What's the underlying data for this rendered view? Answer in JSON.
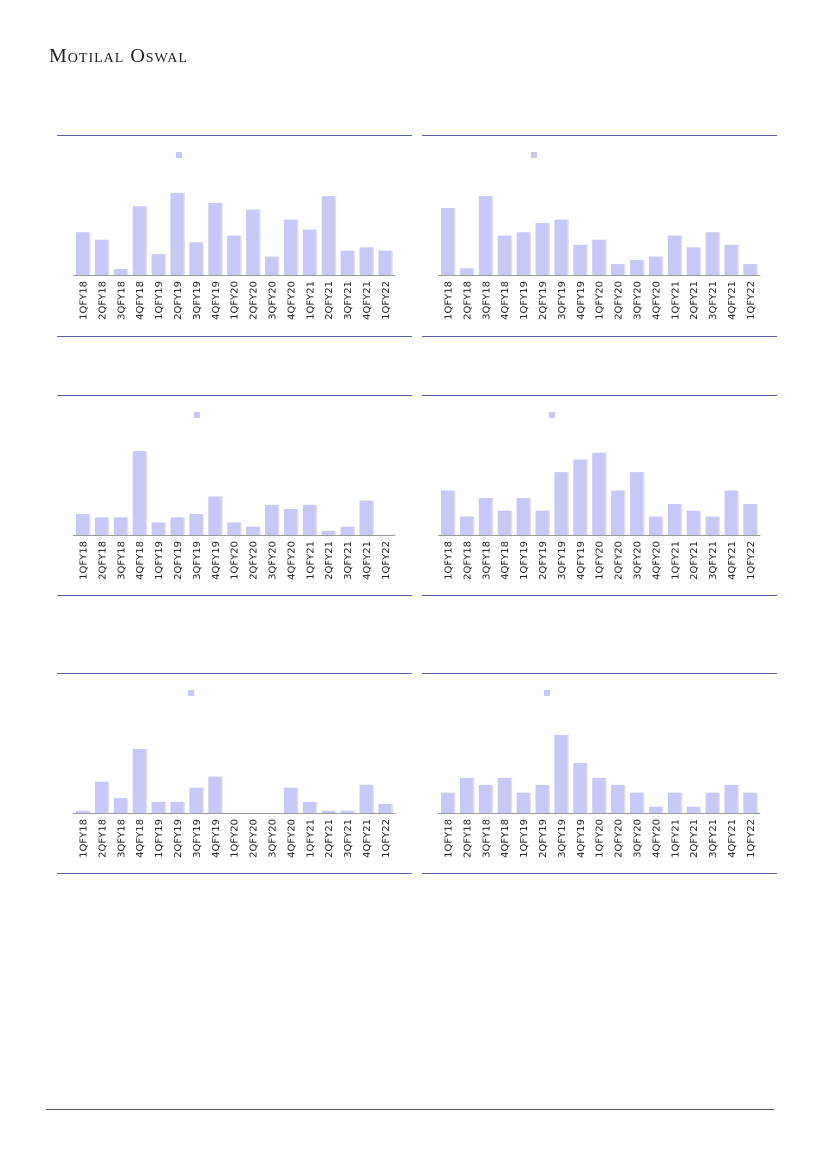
{
  "brand": {
    "name": "Motilal Oswal"
  },
  "colors": {
    "bar": "#c8c8f6",
    "rule": "#5b5fa8"
  },
  "chart_data": [
    {
      "type": "bar",
      "categories": [
        "1QFY18",
        "2QFY18",
        "3QFY18",
        "4QFY18",
        "1QFY19",
        "2QFY19",
        "3QFY19",
        "4QFY19",
        "1QFY20",
        "2QFY20",
        "3QFY20",
        "4QFY20",
        "1QFY21",
        "2QFY21",
        "3QFY21",
        "4QFY21",
        "1QFY22"
      ],
      "values": [
        51,
        42,
        7,
        82,
        25,
        98,
        39,
        86,
        47,
        78,
        22,
        66,
        54,
        94,
        29,
        33,
        29
      ],
      "ylim": [
        0,
        105
      ],
      "legend": "top"
    },
    {
      "type": "bar",
      "categories": [
        "1QFY18",
        "2QFY18",
        "3QFY18",
        "4QFY18",
        "1QFY19",
        "2QFY19",
        "3QFY19",
        "4QFY19",
        "1QFY20",
        "2QFY20",
        "3QFY20",
        "4QFY20",
        "1QFY21",
        "2QFY21",
        "3QFY21",
        "4QFY21",
        "1QFY22"
      ],
      "values": [
        80,
        8,
        94,
        47,
        51,
        62,
        66,
        36,
        42,
        13,
        18,
        22,
        47,
        33,
        51,
        36,
        13
      ],
      "ylim": [
        0,
        105
      ],
      "legend": "top"
    },
    {
      "type": "bar",
      "categories": [
        "1QFY18",
        "2QFY18",
        "3QFY18",
        "4QFY18",
        "1QFY19",
        "2QFY19",
        "3QFY19",
        "4QFY19",
        "1QFY20",
        "2QFY20",
        "3QFY20",
        "4QFY20",
        "1QFY21",
        "2QFY21",
        "3QFY21",
        "4QFY21",
        "1QFY22"
      ],
      "values": [
        25,
        21,
        21,
        100,
        15,
        21,
        25,
        46,
        15,
        10,
        36,
        31,
        36,
        5,
        10,
        41,
        0
      ],
      "ylim": [
        0,
        105
      ],
      "legend": "top"
    },
    {
      "type": "bar",
      "categories": [
        "1QFY18",
        "2QFY18",
        "3QFY18",
        "4QFY18",
        "1QFY19",
        "2QFY19",
        "3QFY19",
        "4QFY19",
        "1QFY20",
        "2QFY20",
        "3QFY20",
        "4QFY20",
        "1QFY21",
        "2QFY21",
        "3QFY21",
        "4QFY21",
        "1QFY22"
      ],
      "values": [
        53,
        22,
        44,
        29,
        44,
        29,
        75,
        90,
        98,
        53,
        75,
        22,
        37,
        29,
        22,
        53,
        37
      ],
      "ylim": [
        0,
        105
      ],
      "legend": "top"
    },
    {
      "type": "bar",
      "categories": [
        "1QFY18",
        "2QFY18",
        "3QFY18",
        "4QFY18",
        "1QFY19",
        "2QFY19",
        "3QFY19",
        "4QFY19",
        "1QFY20",
        "2QFY20",
        "3QFY20",
        "4QFY20",
        "1QFY21",
        "2QFY21",
        "3QFY21",
        "4QFY21",
        "1QFY22"
      ],
      "values": [
        3,
        42,
        20,
        86,
        15,
        15,
        34,
        49,
        0,
        0,
        0,
        34,
        15,
        3,
        3,
        38,
        12
      ],
      "ylim": [
        0,
        105
      ],
      "legend": "top"
    },
    {
      "type": "bar",
      "categories": [
        "1QFY18",
        "2QFY18",
        "3QFY18",
        "4QFY18",
        "1QFY19",
        "2QFY19",
        "3QFY19",
        "4QFY19",
        "1QFY20",
        "2QFY20",
        "3QFY20",
        "4QFY20",
        "1QFY21",
        "2QFY21",
        "3QFY21",
        "4QFY21",
        "1QFY22"
      ],
      "values": [
        26,
        45,
        36,
        45,
        26,
        36,
        100,
        64,
        45,
        36,
        26,
        8,
        26,
        8,
        26,
        36,
        26
      ],
      "ylim": [
        0,
        105
      ],
      "legend": "top"
    }
  ]
}
